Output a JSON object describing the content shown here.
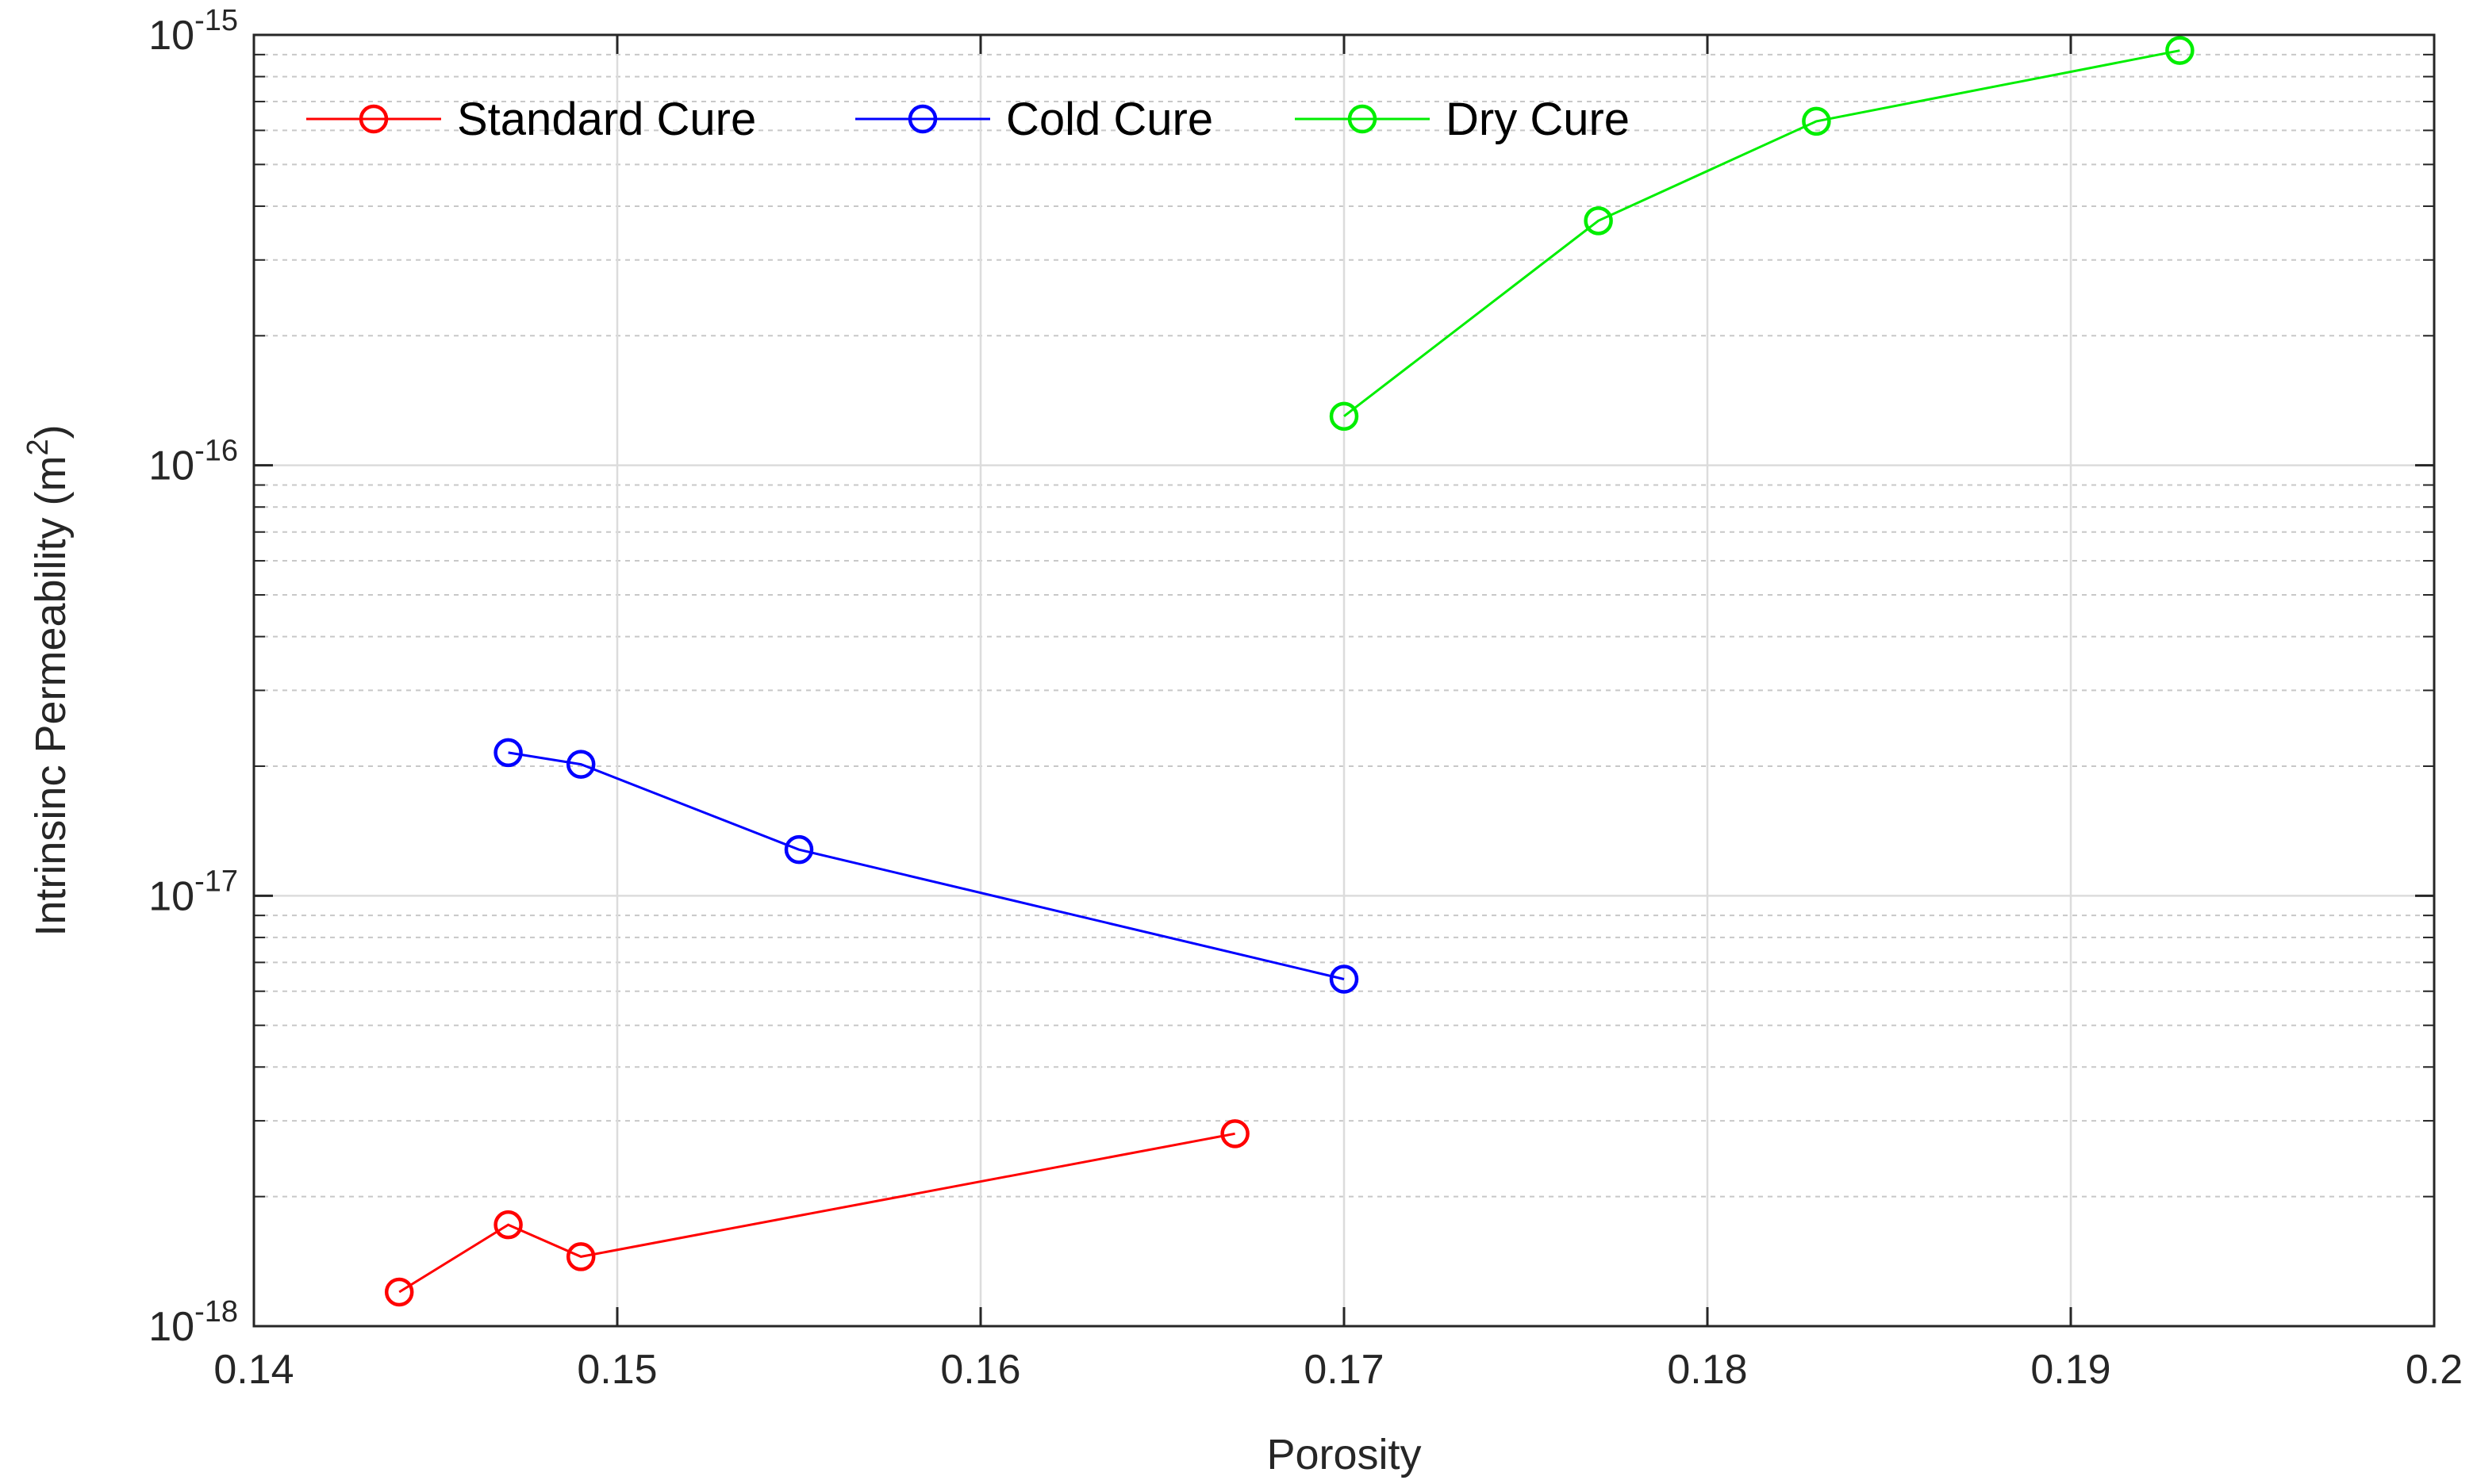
{
  "chart_data": {
    "type": "line",
    "xlabel": "Porosity",
    "ylabel": "Intrinsinc Permeability (m",
    "ylabel_sup": "2",
    "ylabel_close": ")",
    "yscale": "log",
    "xlim": [
      0.14,
      0.2
    ],
    "ylim": [
      1e-18,
      1e-15
    ],
    "x_ticks": [
      0.14,
      0.15,
      0.16,
      0.17,
      0.18,
      0.19,
      0.2
    ],
    "x_tick_labels": [
      "0.14",
      "0.15",
      "0.16",
      "0.17",
      "0.18",
      "0.19",
      "0.2"
    ],
    "y_ticks": [
      {
        "value": 1e-18,
        "base": "10",
        "exp": "-18"
      },
      {
        "value": 1e-17,
        "base": "10",
        "exp": "-17"
      },
      {
        "value": 1e-16,
        "base": "10",
        "exp": "-16"
      },
      {
        "value": 1e-15,
        "base": "10",
        "exp": "-15"
      }
    ],
    "grid": true,
    "minor_grid": true,
    "legend_position": "top-left",
    "series": [
      {
        "name": "Standard Cure",
        "color": "#ff0000",
        "x": [
          0.144,
          0.147,
          0.149,
          0.167
        ],
        "y": [
          1.2e-18,
          1.72e-18,
          1.45e-18,
          2.8e-18
        ]
      },
      {
        "name": "Cold Cure",
        "color": "#0000ff",
        "x": [
          0.147,
          0.149,
          0.155,
          0.17
        ],
        "y": [
          2.15e-17,
          2.02e-17,
          1.28e-17,
          6.4e-18
        ]
      },
      {
        "name": "Dry Cure",
        "color": "#00ee00",
        "x": [
          0.17,
          0.177,
          0.183,
          0.193
        ],
        "y": [
          1.3e-16,
          3.7e-16,
          6.3e-16,
          9.2e-16
        ]
      }
    ]
  }
}
